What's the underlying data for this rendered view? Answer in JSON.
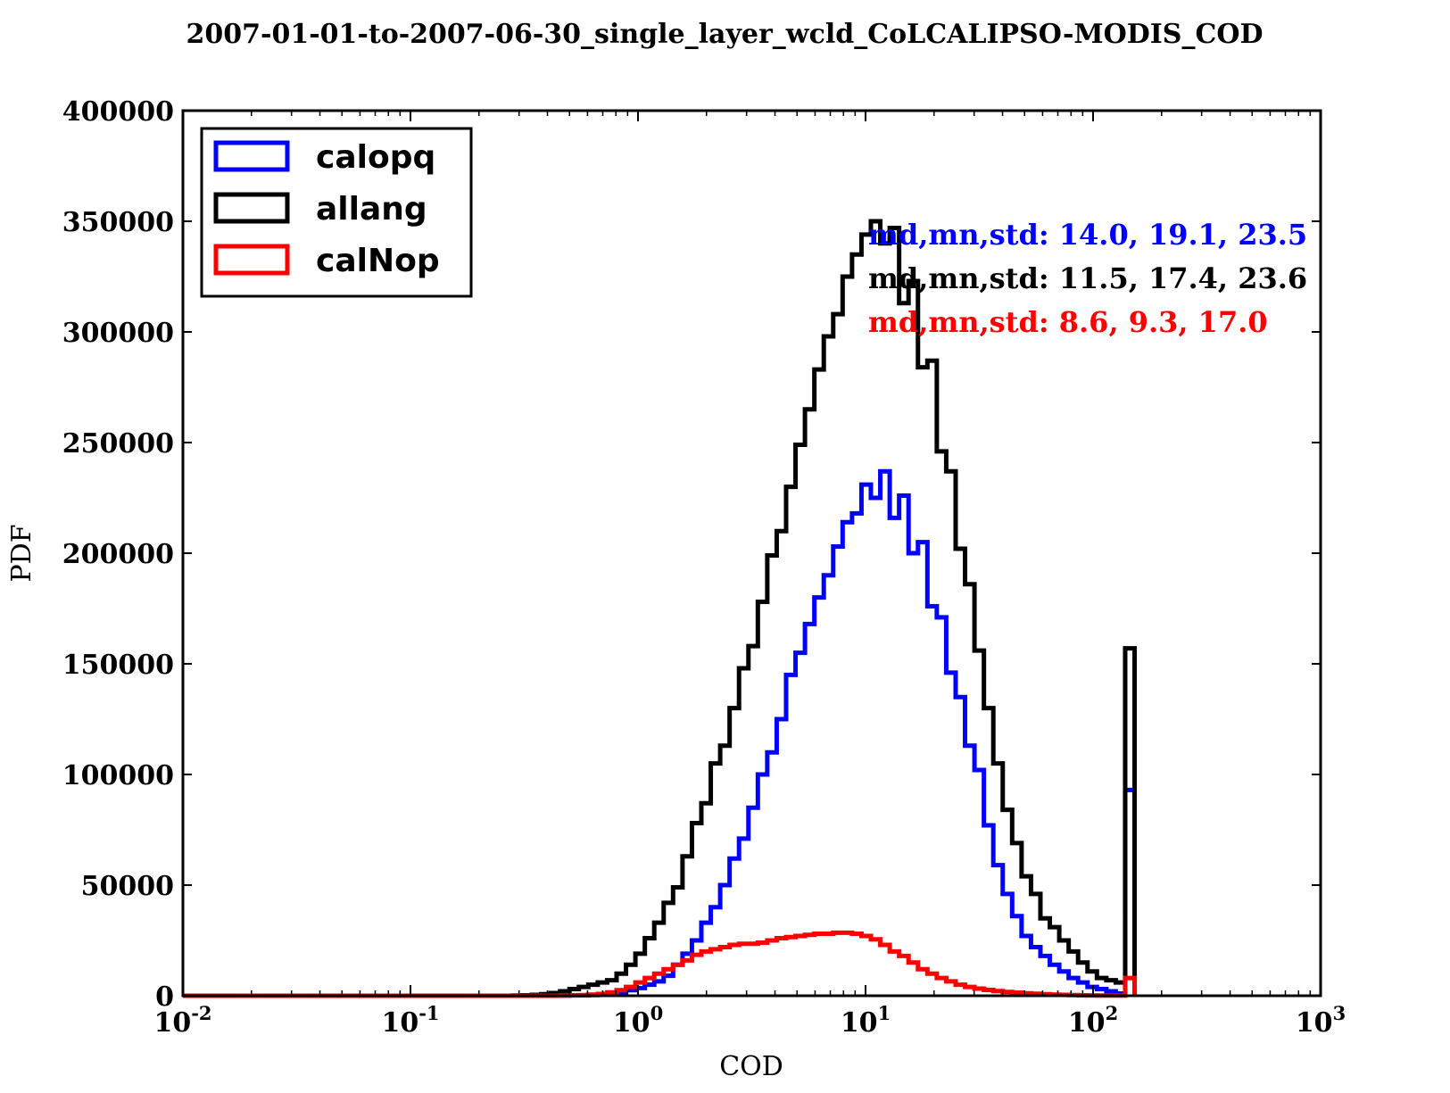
{
  "chart_data": {
    "type": "histogram",
    "title": "2007-01-01-to-2007-06-30_single_layer_wcld_CoLCALIPSO-MODIS_COD",
    "xlabel": "COD",
    "ylabel": "PDF",
    "xscale": "log",
    "xlim": [
      0.01,
      1000
    ],
    "ylim": [
      0,
      400000
    ],
    "x_ticks": [
      0.01,
      0.1,
      1,
      10,
      100,
      1000
    ],
    "x_tick_labels": [
      {
        "base": "10",
        "exp": "-2"
      },
      {
        "base": "10",
        "exp": "-1"
      },
      {
        "base": "10",
        "exp": "0"
      },
      {
        "base": "10",
        "exp": "1"
      },
      {
        "base": "10",
        "exp": "2"
      },
      {
        "base": "10",
        "exp": "3"
      }
    ],
    "y_ticks": [
      0,
      50000,
      100000,
      150000,
      200000,
      250000,
      300000,
      350000,
      400000
    ],
    "y_tick_labels": [
      "0",
      "50000",
      "100000",
      "150000",
      "200000",
      "250000",
      "300000",
      "350000",
      "400000"
    ],
    "legend_position": "top-left",
    "grid": false,
    "bin_edges": [
      0.01,
      0.011,
      0.0121,
      0.0133,
      0.0146,
      0.0161,
      0.0177,
      0.0195,
      0.0215,
      0.0236,
      0.026,
      0.0286,
      0.0315,
      0.0346,
      0.0381,
      0.0419,
      0.0461,
      0.0507,
      0.0558,
      0.0614,
      0.0675,
      0.0743,
      0.0817,
      0.0899,
      0.0989,
      0.1088,
      0.1196,
      0.1316,
      0.1448,
      0.1593,
      0.1752,
      0.1927,
      0.212,
      0.2332,
      0.2565,
      0.2822,
      0.3104,
      0.3414,
      0.3756,
      0.4131,
      0.4545,
      0.4999,
      0.5499,
      0.6049,
      0.6654,
      0.7319,
      0.8051,
      0.8856,
      0.9742,
      1.0716,
      1.1788,
      1.2967,
      1.4263,
      1.569,
      1.7259,
      1.8985,
      2.0883,
      2.2972,
      2.5269,
      2.7796,
      3.0575,
      3.3633,
      3.6996,
      4.0696,
      4.4765,
      4.9242,
      5.4166,
      5.9583,
      6.5541,
      7.2095,
      7.9305,
      8.7235,
      9.5959,
      10.5555,
      11.611,
      12.7721,
      14.0493,
      15.4543,
      16.9997,
      18.6997,
      20.5696,
      22.6266,
      24.8893,
      27.3782,
      30.116,
      33.1276,
      36.4404,
      40.0844,
      44.0929,
      48.5021,
      53.3524,
      58.6876,
      64.5564,
      71.012,
      78.1132,
      85.9245,
      94.517,
      103.9687,
      114.3655,
      125.8021,
      138.3823,
      152.2205
    ],
    "series": [
      {
        "name": "calopq",
        "color": "#0000ff",
        "stat_label": "md,mn,std: 14.0, 19.1, 23.5",
        "values": [
          0,
          0,
          0,
          0,
          0,
          0,
          0,
          0,
          0,
          0,
          0,
          0,
          0,
          0,
          0,
          0,
          0,
          0,
          0,
          0,
          0,
          0,
          0,
          0,
          0,
          0,
          0,
          0,
          0,
          0,
          0,
          0,
          0,
          0,
          0,
          0,
          0,
          0,
          0,
          0,
          100,
          150,
          200,
          300,
          500,
          800,
          1500,
          2500,
          3500,
          5000,
          6500,
          9000,
          14000,
          19000,
          25000,
          33000,
          40000,
          50000,
          62000,
          71000,
          85000,
          100000,
          110000,
          125000,
          145000,
          155000,
          168000,
          180000,
          190000,
          203000,
          214000,
          218000,
          231000,
          225000,
          237000,
          216000,
          226000,
          200000,
          205000,
          176000,
          171000,
          146000,
          135000,
          113000,
          102000,
          77000,
          59000,
          46000,
          36000,
          27000,
          22000,
          18000,
          14000,
          11000,
          8000,
          6000,
          4000,
          3000,
          2000,
          1000,
          93000
        ]
      },
      {
        "name": "allang",
        "color": "#000000",
        "stat_label": "md,mn,std: 11.5, 17.4, 23.6",
        "values": [
          0,
          0,
          0,
          0,
          0,
          0,
          0,
          0,
          0,
          0,
          0,
          0,
          0,
          0,
          0,
          0,
          0,
          0,
          0,
          0,
          0,
          0,
          0,
          0,
          0,
          0,
          0,
          0,
          0,
          0,
          0,
          0,
          0,
          0,
          0,
          100,
          200,
          400,
          700,
          1200,
          2000,
          3000,
          4000,
          5000,
          6000,
          7000,
          10000,
          14000,
          19000,
          26000,
          33000,
          42000,
          49000,
          63000,
          78000,
          87000,
          105000,
          113000,
          130000,
          148000,
          158000,
          178000,
          199000,
          210000,
          230000,
          249000,
          265000,
          283000,
          298000,
          308000,
          325000,
          335000,
          344000,
          350000,
          340000,
          347000,
          313000,
          323000,
          284000,
          287000,
          246000,
          237000,
          202000,
          186000,
          156000,
          130000,
          105000,
          84000,
          69000,
          54000,
          46000,
          35000,
          31000,
          25000,
          20000,
          15000,
          11000,
          8000,
          7000,
          6000,
          157000
        ]
      },
      {
        "name": "calNop",
        "color": "#ff0000",
        "stat_label": "md,mn,std: 8.6, 9.3, 17.0",
        "values": [
          0,
          0,
          0,
          0,
          0,
          0,
          0,
          0,
          0,
          0,
          0,
          0,
          0,
          0,
          0,
          0,
          0,
          0,
          0,
          0,
          0,
          0,
          0,
          0,
          0,
          0,
          0,
          0,
          0,
          0,
          0,
          0,
          0,
          0,
          0,
          0,
          0,
          0,
          0,
          0,
          100,
          200,
          300,
          500,
          800,
          1500,
          2500,
          4000,
          6000,
          8000,
          10000,
          12000,
          14000,
          16000,
          18500,
          20000,
          21000,
          22000,
          23000,
          23500,
          23500,
          24000,
          25000,
          26000,
          26500,
          27000,
          27500,
          28000,
          28000,
          28500,
          28500,
          28000,
          27000,
          25500,
          23000,
          20000,
          18000,
          15000,
          12000,
          10000,
          8000,
          6500,
          5000,
          4000,
          3200,
          2600,
          2100,
          1700,
          1400,
          1100,
          900,
          700,
          500,
          400,
          300,
          200,
          150,
          100,
          100,
          100,
          8000
        ]
      }
    ]
  }
}
